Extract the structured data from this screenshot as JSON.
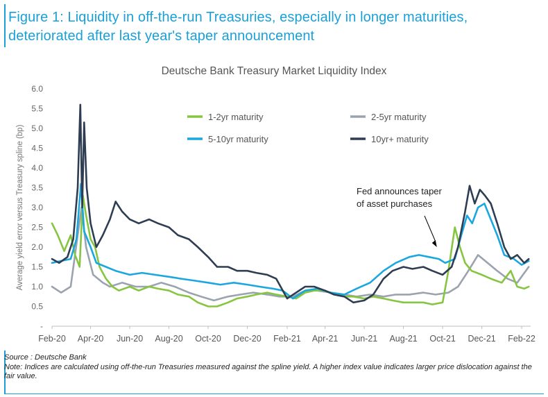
{
  "figure": {
    "title": "Figure 1: Liquidity in off-the-run Treasuries, especially in longer maturities, deteriorated after last year's taper announcement"
  },
  "footer": {
    "source": "Source : Deutsche Bank",
    "note": "Note: Indices are calculated using off-the-run Treasuries measured against the spline yield. A higher index value indicates larger price dislocation against the fair value."
  },
  "chart_data": {
    "type": "line",
    "title": "Deutsche Bank Treasury Market Liquidity Index",
    "xlabel": "",
    "ylabel": "Average yield error versus Treasury spline (bp)",
    "ylim": [
      0,
      6.0
    ],
    "yticks": [
      "-",
      "0.5",
      "1.0",
      "1.5",
      "2.0",
      "2.5",
      "3.0",
      "3.5",
      "4.0",
      "4.5",
      "5.0",
      "5.5",
      "6.0"
    ],
    "xlim": [
      "2020-02-01",
      "2022-02-15"
    ],
    "xticks": [
      {
        "date": "2020-02-01",
        "label": "Feb-20"
      },
      {
        "date": "2020-04-01",
        "label": "Apr-20"
      },
      {
        "date": "2020-06-01",
        "label": "Jun-20"
      },
      {
        "date": "2020-08-01",
        "label": "Aug-20"
      },
      {
        "date": "2020-10-01",
        "label": "Oct-20"
      },
      {
        "date": "2020-12-01",
        "label": "Dec-20"
      },
      {
        "date": "2021-02-01",
        "label": "Feb-21"
      },
      {
        "date": "2021-04-01",
        "label": "Apr-21"
      },
      {
        "date": "2021-06-01",
        "label": "Jun-21"
      },
      {
        "date": "2021-08-01",
        "label": "Aug-21"
      },
      {
        "date": "2021-10-01",
        "label": "Oct-21"
      },
      {
        "date": "2021-12-01",
        "label": "Dec-21"
      },
      {
        "date": "2022-02-01",
        "label": "Feb-22"
      }
    ],
    "grid": false,
    "legend": "top",
    "annotation": {
      "text": [
        "Fed announces taper",
        "of asset purchases"
      ],
      "date": "2021-09-22",
      "value": 2.0
    },
    "series": [
      {
        "name": "1-2yr maturity",
        "color": "#86c540",
        "points": [
          [
            "2020-02-01",
            2.6
          ],
          [
            "2020-02-10",
            2.3
          ],
          [
            "2020-02-20",
            1.9
          ],
          [
            "2020-03-01",
            2.3
          ],
          [
            "2020-03-08",
            1.8
          ],
          [
            "2020-03-15",
            1.5
          ],
          [
            "2020-03-20",
            3.3
          ],
          [
            "2020-03-25",
            2.8
          ],
          [
            "2020-04-01",
            2.2
          ],
          [
            "2020-04-08",
            2.0
          ],
          [
            "2020-04-15",
            1.5
          ],
          [
            "2020-04-25",
            1.2
          ],
          [
            "2020-05-05",
            1.0
          ],
          [
            "2020-05-15",
            0.9
          ],
          [
            "2020-06-01",
            1.0
          ],
          [
            "2020-06-15",
            0.9
          ],
          [
            "2020-07-01",
            1.0
          ],
          [
            "2020-07-15",
            0.95
          ],
          [
            "2020-08-01",
            0.9
          ],
          [
            "2020-08-15",
            0.8
          ],
          [
            "2020-09-01",
            0.75
          ],
          [
            "2020-09-15",
            0.6
          ],
          [
            "2020-10-01",
            0.5
          ],
          [
            "2020-10-15",
            0.5
          ],
          [
            "2020-11-01",
            0.6
          ],
          [
            "2020-11-15",
            0.7
          ],
          [
            "2020-12-01",
            0.75
          ],
          [
            "2020-12-15",
            0.8
          ],
          [
            "2021-01-01",
            0.85
          ],
          [
            "2021-01-15",
            0.8
          ],
          [
            "2021-02-01",
            0.75
          ],
          [
            "2021-02-15",
            0.7
          ],
          [
            "2021-03-01",
            0.85
          ],
          [
            "2021-03-15",
            0.9
          ],
          [
            "2021-04-01",
            0.9
          ],
          [
            "2021-04-15",
            0.8
          ],
          [
            "2021-05-01",
            0.75
          ],
          [
            "2021-05-15",
            0.75
          ],
          [
            "2021-06-01",
            0.7
          ],
          [
            "2021-06-15",
            0.75
          ],
          [
            "2021-07-01",
            0.7
          ],
          [
            "2021-07-15",
            0.65
          ],
          [
            "2021-08-01",
            0.6
          ],
          [
            "2021-08-15",
            0.6
          ],
          [
            "2021-09-01",
            0.6
          ],
          [
            "2021-09-15",
            0.55
          ],
          [
            "2021-10-01",
            0.6
          ],
          [
            "2021-10-10",
            1.4
          ],
          [
            "2021-10-20",
            2.5
          ],
          [
            "2021-10-28",
            2.0
          ],
          [
            "2021-11-05",
            1.6
          ],
          [
            "2021-11-15",
            1.4
          ],
          [
            "2021-12-01",
            1.3
          ],
          [
            "2021-12-15",
            1.2
          ],
          [
            "2022-01-01",
            1.1
          ],
          [
            "2022-01-15",
            1.4
          ],
          [
            "2022-01-25",
            1.0
          ],
          [
            "2022-02-05",
            0.95
          ],
          [
            "2022-02-12",
            1.0
          ]
        ]
      },
      {
        "name": "2-5yr maturity",
        "color": "#9aa3ae",
        "points": [
          [
            "2020-02-01",
            1.0
          ],
          [
            "2020-02-15",
            0.85
          ],
          [
            "2020-03-01",
            1.0
          ],
          [
            "2020-03-12",
            2.3
          ],
          [
            "2020-03-18",
            3.0
          ],
          [
            "2020-03-25",
            2.0
          ],
          [
            "2020-04-05",
            1.3
          ],
          [
            "2020-04-20",
            1.1
          ],
          [
            "2020-05-01",
            1.0
          ],
          [
            "2020-05-20",
            1.1
          ],
          [
            "2020-06-10",
            1.0
          ],
          [
            "2020-07-01",
            1.0
          ],
          [
            "2020-07-20",
            1.1
          ],
          [
            "2020-08-10",
            1.0
          ],
          [
            "2020-09-01",
            0.85
          ],
          [
            "2020-09-20",
            0.75
          ],
          [
            "2020-10-10",
            0.65
          ],
          [
            "2020-11-01",
            0.75
          ],
          [
            "2020-11-20",
            0.8
          ],
          [
            "2020-12-10",
            0.85
          ],
          [
            "2021-01-01",
            0.8
          ],
          [
            "2021-01-20",
            0.75
          ],
          [
            "2021-02-10",
            0.75
          ],
          [
            "2021-03-01",
            0.9
          ],
          [
            "2021-03-20",
            0.9
          ],
          [
            "2021-04-10",
            0.85
          ],
          [
            "2021-05-01",
            0.8
          ],
          [
            "2021-05-20",
            0.75
          ],
          [
            "2021-06-10",
            0.8
          ],
          [
            "2021-07-01",
            0.75
          ],
          [
            "2021-07-20",
            0.8
          ],
          [
            "2021-08-10",
            0.8
          ],
          [
            "2021-09-01",
            0.85
          ],
          [
            "2021-09-20",
            0.8
          ],
          [
            "2021-10-10",
            0.85
          ],
          [
            "2021-10-25",
            1.0
          ],
          [
            "2021-11-10",
            1.4
          ],
          [
            "2021-11-25",
            1.8
          ],
          [
            "2021-12-10",
            1.6
          ],
          [
            "2021-12-25",
            1.4
          ],
          [
            "2022-01-10",
            1.2
          ],
          [
            "2022-01-25",
            1.1
          ],
          [
            "2022-02-12",
            1.5
          ]
        ]
      },
      {
        "name": "5-10yr maturity",
        "color": "#1aa7e0",
        "points": [
          [
            "2020-02-01",
            1.6
          ],
          [
            "2020-02-15",
            1.65
          ],
          [
            "2020-03-01",
            1.7
          ],
          [
            "2020-03-10",
            2.2
          ],
          [
            "2020-03-17",
            3.6
          ],
          [
            "2020-03-22",
            2.4
          ],
          [
            "2020-04-01",
            2.0
          ],
          [
            "2020-04-10",
            1.6
          ],
          [
            "2020-04-25",
            1.5
          ],
          [
            "2020-05-10",
            1.4
          ],
          [
            "2020-06-01",
            1.3
          ],
          [
            "2020-06-20",
            1.35
          ],
          [
            "2020-07-10",
            1.3
          ],
          [
            "2020-08-01",
            1.25
          ],
          [
            "2020-08-20",
            1.2
          ],
          [
            "2020-09-10",
            1.15
          ],
          [
            "2020-10-01",
            1.1
          ],
          [
            "2020-10-20",
            1.05
          ],
          [
            "2020-11-10",
            1.1
          ],
          [
            "2020-12-01",
            1.05
          ],
          [
            "2020-12-20",
            1.0
          ],
          [
            "2021-01-10",
            0.95
          ],
          [
            "2021-01-25",
            0.9
          ],
          [
            "2021-02-10",
            0.7
          ],
          [
            "2021-03-01",
            0.9
          ],
          [
            "2021-03-20",
            0.95
          ],
          [
            "2021-04-10",
            0.85
          ],
          [
            "2021-05-01",
            0.8
          ],
          [
            "2021-05-20",
            0.95
          ],
          [
            "2021-06-10",
            1.1
          ],
          [
            "2021-07-01",
            1.4
          ],
          [
            "2021-07-20",
            1.6
          ],
          [
            "2021-08-10",
            1.75
          ],
          [
            "2021-08-25",
            1.8
          ],
          [
            "2021-09-10",
            1.75
          ],
          [
            "2021-09-25",
            1.7
          ],
          [
            "2021-10-05",
            1.6
          ],
          [
            "2021-10-20",
            1.7
          ],
          [
            "2021-10-30",
            2.3
          ],
          [
            "2021-11-08",
            2.8
          ],
          [
            "2021-11-16",
            2.6
          ],
          [
            "2021-11-25",
            3.0
          ],
          [
            "2021-12-05",
            3.1
          ],
          [
            "2021-12-15",
            2.7
          ],
          [
            "2021-12-25",
            2.3
          ],
          [
            "2022-01-05",
            1.8
          ],
          [
            "2022-01-20",
            1.7
          ],
          [
            "2022-02-01",
            1.55
          ],
          [
            "2022-02-12",
            1.65
          ]
        ]
      },
      {
        "name": "10yr+ maturity",
        "color": "#2e3d52",
        "points": [
          [
            "2020-02-01",
            1.7
          ],
          [
            "2020-02-12",
            1.6
          ],
          [
            "2020-02-25",
            1.75
          ],
          [
            "2020-03-05",
            2.2
          ],
          [
            "2020-03-12",
            3.5
          ],
          [
            "2020-03-16",
            5.6
          ],
          [
            "2020-03-19",
            3.0
          ],
          [
            "2020-03-22",
            5.15
          ],
          [
            "2020-03-26",
            3.5
          ],
          [
            "2020-04-01",
            2.6
          ],
          [
            "2020-04-10",
            2.0
          ],
          [
            "2020-04-20",
            2.3
          ],
          [
            "2020-05-01",
            2.7
          ],
          [
            "2020-05-10",
            3.15
          ],
          [
            "2020-05-20",
            2.9
          ],
          [
            "2020-06-01",
            2.7
          ],
          [
            "2020-06-15",
            2.6
          ],
          [
            "2020-07-01",
            2.7
          ],
          [
            "2020-07-15",
            2.6
          ],
          [
            "2020-08-01",
            2.5
          ],
          [
            "2020-08-15",
            2.3
          ],
          [
            "2020-09-01",
            2.2
          ],
          [
            "2020-09-15",
            2.0
          ],
          [
            "2020-10-01",
            1.75
          ],
          [
            "2020-10-15",
            1.5
          ],
          [
            "2020-11-01",
            1.5
          ],
          [
            "2020-11-15",
            1.4
          ],
          [
            "2020-12-01",
            1.4
          ],
          [
            "2020-12-15",
            1.35
          ],
          [
            "2021-01-01",
            1.3
          ],
          [
            "2021-01-15",
            1.2
          ],
          [
            "2021-02-01",
            0.7
          ],
          [
            "2021-02-15",
            0.85
          ],
          [
            "2021-03-01",
            1.0
          ],
          [
            "2021-03-15",
            1.0
          ],
          [
            "2021-04-01",
            0.9
          ],
          [
            "2021-04-15",
            0.8
          ],
          [
            "2021-05-01",
            0.75
          ],
          [
            "2021-05-15",
            0.6
          ],
          [
            "2021-06-01",
            0.65
          ],
          [
            "2021-06-15",
            0.8
          ],
          [
            "2021-07-01",
            1.2
          ],
          [
            "2021-07-15",
            1.4
          ],
          [
            "2021-08-01",
            1.5
          ],
          [
            "2021-08-15",
            1.45
          ],
          [
            "2021-09-01",
            1.5
          ],
          [
            "2021-09-15",
            1.4
          ],
          [
            "2021-10-01",
            1.3
          ],
          [
            "2021-10-15",
            1.5
          ],
          [
            "2021-10-25",
            2.0
          ],
          [
            "2021-11-05",
            2.9
          ],
          [
            "2021-11-12",
            3.55
          ],
          [
            "2021-11-20",
            3.1
          ],
          [
            "2021-11-28",
            3.45
          ],
          [
            "2021-12-06",
            3.3
          ],
          [
            "2021-12-15",
            3.1
          ],
          [
            "2021-12-25",
            2.6
          ],
          [
            "2022-01-05",
            2.0
          ],
          [
            "2022-01-15",
            1.7
          ],
          [
            "2022-01-25",
            1.8
          ],
          [
            "2022-02-05",
            1.6
          ],
          [
            "2022-02-12",
            1.7
          ]
        ]
      }
    ]
  }
}
